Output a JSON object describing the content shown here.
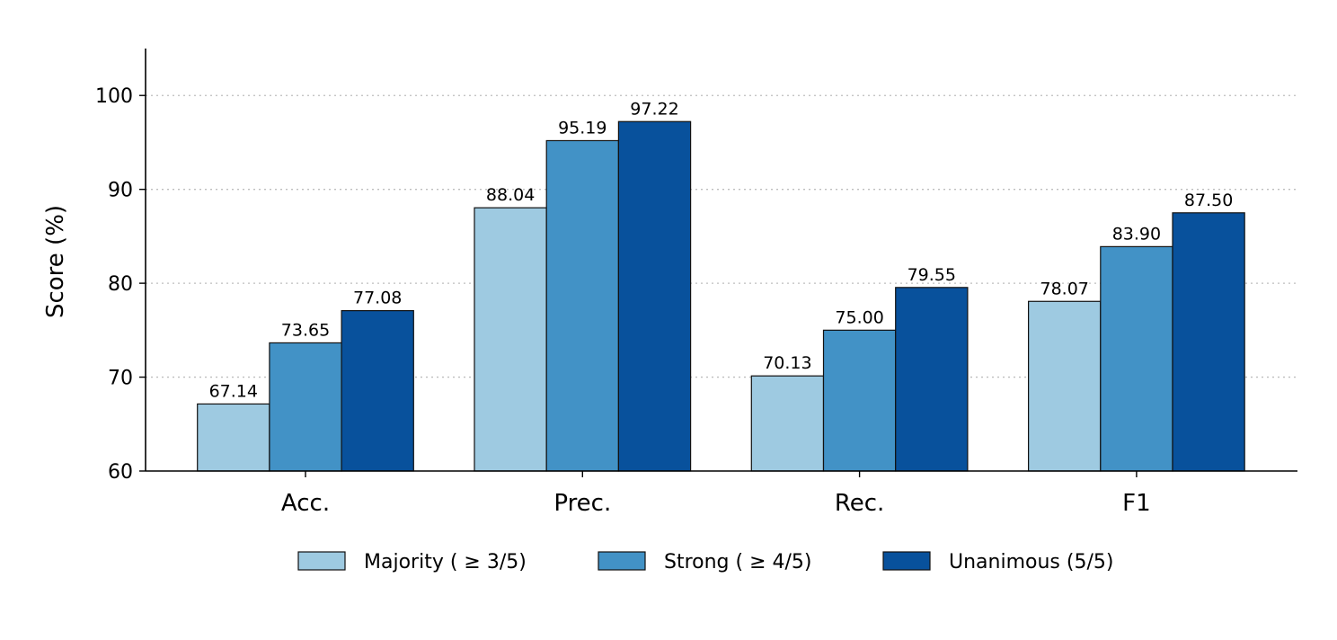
{
  "chart_data": {
    "type": "bar",
    "categories": [
      "Acc.",
      "Prec.",
      "Rec.",
      "F1"
    ],
    "series": [
      {
        "name": "Majority ( ≥ 3/5)",
        "values": [
          67.14,
          88.04,
          70.13,
          78.07
        ],
        "color": "#9ecae1"
      },
      {
        "name": "Strong ( ≥ 4/5)",
        "values": [
          73.65,
          95.19,
          75.0,
          83.9
        ],
        "color": "#4292c6"
      },
      {
        "name": "Unanimous (5/5)",
        "values": [
          77.08,
          97.22,
          79.55,
          87.5
        ],
        "color": "#08519c"
      }
    ],
    "value_labels": [
      [
        "67.14",
        "88.04",
        "70.13",
        "78.07"
      ],
      [
        "73.65",
        "95.19",
        "75.00",
        "83.90"
      ],
      [
        "77.08",
        "97.22",
        "79.55",
        "87.50"
      ]
    ],
    "title": "",
    "xlabel": "",
    "ylabel": "Score (%)",
    "ylim": [
      60,
      105
    ],
    "yticks": [
      60,
      70,
      80,
      90,
      100
    ],
    "ytick_labels": [
      "60",
      "70",
      "80",
      "90",
      "100"
    ],
    "grid": "horizontal dotted",
    "legend_position": "bottom-center"
  }
}
